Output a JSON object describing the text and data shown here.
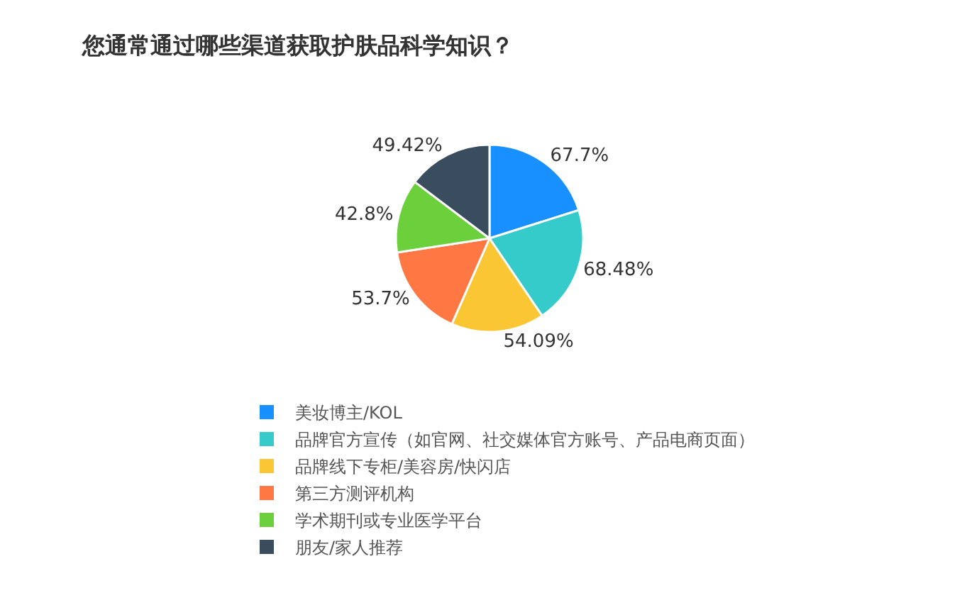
{
  "chart_data": {
    "type": "pie",
    "title": "您通常通过哪些渠道获取护肤品科学知识？",
    "categories": [
      "美妆博主/KOL",
      "品牌官方宣传（如官网、社交媒体官方账号、产品电商页面）",
      "品牌线下专柜/美容房/快闪店",
      "第三方测评机构",
      "学术期刊或专业医学平台",
      "朋友/家人推荐"
    ],
    "values": [
      67.7,
      68.48,
      54.09,
      53.7,
      42.8,
      49.42
    ],
    "value_labels": [
      "67.7%",
      "68.48%",
      "54.09%",
      "53.7%",
      "42.8%",
      "49.42%"
    ],
    "colors": [
      "#1890ff",
      "#36cbcb",
      "#fbc634",
      "#ff7843",
      "#6ccf3c",
      "#3a4d5e"
    ],
    "legend": "bottom"
  }
}
